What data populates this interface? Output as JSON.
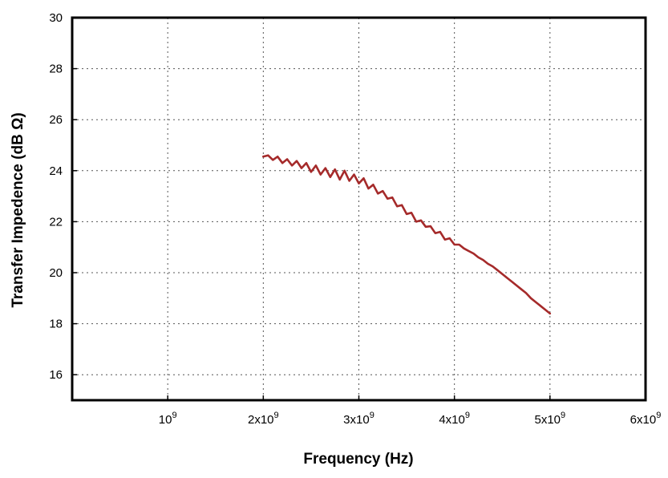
{
  "chart_data": {
    "type": "line",
    "title": "",
    "xlabel": "Frequency (Hz)",
    "ylabel": "Transfer Impedence (dB Ω)",
    "xlim": [
      0,
      6000000000
    ],
    "ylim": [
      15,
      30
    ],
    "x_ticks": [
      {
        "value": 1000000000,
        "mantissa": "",
        "base": "10",
        "exp": "9"
      },
      {
        "value": 2000000000,
        "mantissa": "2x",
        "base": "10",
        "exp": "9"
      },
      {
        "value": 3000000000,
        "mantissa": "3x",
        "base": "10",
        "exp": "9"
      },
      {
        "value": 4000000000,
        "mantissa": "4x",
        "base": "10",
        "exp": "9"
      },
      {
        "value": 5000000000,
        "mantissa": "5x",
        "base": "10",
        "exp": "9"
      },
      {
        "value": 6000000000,
        "mantissa": "6x",
        "base": "10",
        "exp": "9"
      }
    ],
    "y_ticks": [
      16,
      18,
      20,
      22,
      24,
      26,
      28,
      30
    ],
    "grid": true,
    "series": [
      {
        "name": "",
        "color": "#a52a2a",
        "x": [
          2000000000,
          2050000000,
          2100000000,
          2150000000,
          2200000000,
          2250000000,
          2300000000,
          2350000000,
          2400000000,
          2450000000,
          2500000000,
          2550000000,
          2600000000,
          2650000000,
          2700000000,
          2750000000,
          2800000000,
          2850000000,
          2900000000,
          2950000000,
          3000000000,
          3050000000,
          3100000000,
          3150000000,
          3200000000,
          3250000000,
          3300000000,
          3350000000,
          3400000000,
          3450000000,
          3500000000,
          3550000000,
          3600000000,
          3650000000,
          3700000000,
          3750000000,
          3800000000,
          3850000000,
          3900000000,
          3950000000,
          4000000000,
          4050000000,
          4100000000,
          4150000000,
          4200000000,
          4250000000,
          4300000000,
          4350000000,
          4400000000,
          4450000000,
          4500000000,
          4550000000,
          4600000000,
          4650000000,
          4700000000,
          4750000000,
          4800000000,
          4850000000,
          4900000000,
          4950000000,
          5000000000
        ],
        "y": [
          24.55,
          24.6,
          24.42,
          24.55,
          24.3,
          24.45,
          24.2,
          24.38,
          24.1,
          24.3,
          23.95,
          24.2,
          23.85,
          24.1,
          23.75,
          24.05,
          23.65,
          24.0,
          23.6,
          23.85,
          23.5,
          23.7,
          23.3,
          23.45,
          23.1,
          23.2,
          22.9,
          22.95,
          22.6,
          22.65,
          22.3,
          22.35,
          22.0,
          22.05,
          21.8,
          21.82,
          21.55,
          21.6,
          21.3,
          21.35,
          21.1,
          21.1,
          20.95,
          20.85,
          20.75,
          20.6,
          20.5,
          20.35,
          20.25,
          20.1,
          19.95,
          19.8,
          19.65,
          19.5,
          19.35,
          19.2,
          19.0,
          18.85,
          18.7,
          18.55,
          18.4
        ]
      }
    ]
  }
}
